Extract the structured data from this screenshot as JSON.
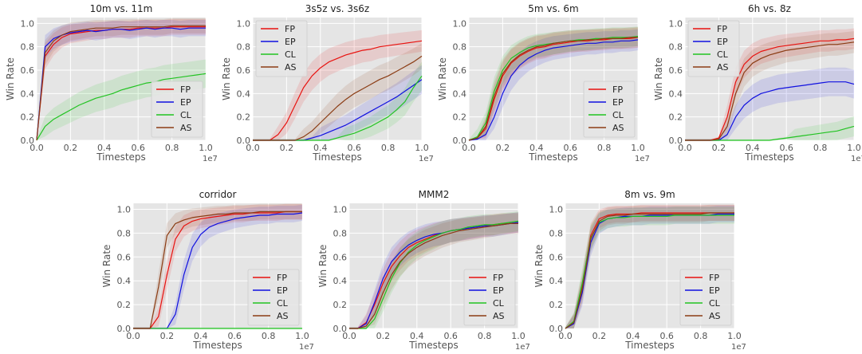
{
  "figure": {
    "colors": {
      "FP": "#e8120f",
      "EP": "#1010e0",
      "CL": "#22c322",
      "AS": "#8b3c14",
      "panel_bg": "#e5e5e5",
      "grid": "#ffffff",
      "text": "#555555"
    }
  },
  "chart_data": [
    {
      "type": "line",
      "title": "10m vs. 11m",
      "xlabel": "Timesteps",
      "ylabel": "Win Rate",
      "x_multiplier": "1e7",
      "xlim": [
        0,
        1.0
      ],
      "ylim": [
        0,
        1.05
      ],
      "xticks": [
        "0.0",
        "0.2",
        "0.4",
        "0.6",
        "0.8",
        "1.0"
      ],
      "yticks": [
        "0.0",
        "0.2",
        "0.4",
        "0.6",
        "0.8",
        "1.0"
      ],
      "legend_position": "lower-right",
      "grid": true,
      "x": [
        0.0,
        0.05,
        0.1,
        0.15,
        0.2,
        0.25,
        0.3,
        0.35,
        0.4,
        0.45,
        0.5,
        0.55,
        0.6,
        0.65,
        0.7,
        0.75,
        0.8,
        0.85,
        0.9,
        0.95,
        1.0
      ],
      "series": [
        {
          "name": "FP",
          "values": [
            0.0,
            0.72,
            0.82,
            0.88,
            0.91,
            0.92,
            0.93,
            0.94,
            0.94,
            0.95,
            0.95,
            0.95,
            0.96,
            0.96,
            0.96,
            0.96,
            0.97,
            0.97,
            0.97,
            0.97,
            0.97
          ]
        },
        {
          "name": "EP",
          "values": [
            0.0,
            0.8,
            0.87,
            0.9,
            0.92,
            0.93,
            0.94,
            0.93,
            0.94,
            0.95,
            0.95,
            0.94,
            0.95,
            0.96,
            0.95,
            0.96,
            0.96,
            0.95,
            0.96,
            0.96,
            0.96
          ]
        },
        {
          "name": "CL",
          "values": [
            0.0,
            0.12,
            0.18,
            0.22,
            0.26,
            0.3,
            0.33,
            0.36,
            0.38,
            0.4,
            0.43,
            0.45,
            0.47,
            0.49,
            0.5,
            0.52,
            0.53,
            0.54,
            0.55,
            0.56,
            0.57
          ]
        },
        {
          "name": "AS",
          "values": [
            0.0,
            0.75,
            0.85,
            0.9,
            0.93,
            0.94,
            0.95,
            0.96,
            0.96,
            0.96,
            0.97,
            0.97,
            0.97,
            0.97,
            0.97,
            0.97,
            0.98,
            0.98,
            0.98,
            0.98,
            0.98
          ]
        }
      ]
    },
    {
      "type": "line",
      "title": "3s5z vs. 3s6z",
      "xlabel": "Timesteps",
      "ylabel": "Win Rate",
      "x_multiplier": "1e7",
      "xlim": [
        0,
        1.0
      ],
      "ylim": [
        0,
        1.05
      ],
      "xticks": [
        "0.0",
        "0.2",
        "0.4",
        "0.6",
        "0.8",
        "1.0"
      ],
      "yticks": [
        "0.0",
        "0.2",
        "0.4",
        "0.6",
        "0.8",
        "1.0"
      ],
      "legend_position": "upper-left",
      "grid": true,
      "x": [
        0.0,
        0.05,
        0.1,
        0.15,
        0.2,
        0.25,
        0.3,
        0.35,
        0.4,
        0.45,
        0.5,
        0.55,
        0.6,
        0.65,
        0.7,
        0.75,
        0.8,
        0.85,
        0.9,
        0.95,
        1.0
      ],
      "series": [
        {
          "name": "FP",
          "values": [
            0.0,
            0.0,
            0.0,
            0.05,
            0.15,
            0.3,
            0.45,
            0.55,
            0.62,
            0.67,
            0.7,
            0.73,
            0.75,
            0.77,
            0.78,
            0.8,
            0.81,
            0.82,
            0.83,
            0.84,
            0.85
          ]
        },
        {
          "name": "EP",
          "values": [
            0.0,
            0.0,
            0.0,
            0.0,
            0.0,
            0.0,
            0.0,
            0.02,
            0.04,
            0.07,
            0.1,
            0.13,
            0.17,
            0.21,
            0.25,
            0.29,
            0.33,
            0.37,
            0.42,
            0.47,
            0.52
          ]
        },
        {
          "name": "CL",
          "values": [
            0.0,
            0.0,
            0.0,
            0.0,
            0.0,
            0.0,
            0.0,
            0.0,
            0.0,
            0.0,
            0.02,
            0.04,
            0.06,
            0.09,
            0.12,
            0.16,
            0.2,
            0.26,
            0.33,
            0.45,
            0.55
          ]
        },
        {
          "name": "AS",
          "values": [
            0.0,
            0.0,
            0.0,
            0.0,
            0.0,
            0.0,
            0.03,
            0.08,
            0.15,
            0.22,
            0.29,
            0.35,
            0.4,
            0.44,
            0.48,
            0.52,
            0.55,
            0.59,
            0.63,
            0.67,
            0.72
          ]
        }
      ]
    },
    {
      "type": "line",
      "title": "5m vs. 6m",
      "xlabel": "Timesteps",
      "ylabel": "Win Rate",
      "x_multiplier": "1e7",
      "xlim": [
        0,
        1.0
      ],
      "ylim": [
        0,
        1.05
      ],
      "xticks": [
        "0.0",
        "0.2",
        "0.4",
        "0.6",
        "0.8",
        "1.0"
      ],
      "yticks": [
        "0.0",
        "0.2",
        "0.4",
        "0.6",
        "0.8",
        "1.0"
      ],
      "legend_position": "lower-right",
      "grid": true,
      "x": [
        0.0,
        0.05,
        0.1,
        0.15,
        0.2,
        0.25,
        0.3,
        0.35,
        0.4,
        0.45,
        0.5,
        0.55,
        0.6,
        0.65,
        0.7,
        0.75,
        0.8,
        0.85,
        0.9,
        0.95,
        1.0
      ],
      "series": [
        {
          "name": "FP",
          "values": [
            0.0,
            0.02,
            0.1,
            0.35,
            0.55,
            0.66,
            0.72,
            0.76,
            0.79,
            0.8,
            0.82,
            0.83,
            0.84,
            0.85,
            0.85,
            0.86,
            0.86,
            0.87,
            0.87,
            0.87,
            0.88
          ]
        },
        {
          "name": "EP",
          "values": [
            0.0,
            0.01,
            0.05,
            0.2,
            0.4,
            0.55,
            0.64,
            0.7,
            0.74,
            0.77,
            0.79,
            0.8,
            0.81,
            0.82,
            0.83,
            0.83,
            0.84,
            0.84,
            0.85,
            0.85,
            0.86
          ]
        },
        {
          "name": "CL",
          "values": [
            0.0,
            0.03,
            0.15,
            0.42,
            0.6,
            0.7,
            0.75,
            0.79,
            0.81,
            0.82,
            0.83,
            0.84,
            0.85,
            0.86,
            0.86,
            0.87,
            0.87,
            0.88,
            0.88,
            0.88,
            0.89
          ]
        },
        {
          "name": "AS",
          "values": [
            0.0,
            0.02,
            0.12,
            0.38,
            0.57,
            0.67,
            0.73,
            0.77,
            0.8,
            0.81,
            0.83,
            0.84,
            0.85,
            0.85,
            0.86,
            0.86,
            0.87,
            0.87,
            0.87,
            0.88,
            0.88
          ]
        }
      ]
    },
    {
      "type": "line",
      "title": "6h vs. 8z",
      "xlabel": "Timesteps",
      "ylabel": "Win Rate",
      "x_multiplier": "1e7",
      "xlim": [
        0,
        1.0
      ],
      "ylim": [
        0,
        1.05
      ],
      "xticks": [
        "0.0",
        "0.2",
        "0.4",
        "0.6",
        "0.8",
        "1.0"
      ],
      "yticks": [
        "0.0",
        "0.2",
        "0.4",
        "0.6",
        "0.8",
        "1.0"
      ],
      "legend_position": "upper-left",
      "grid": true,
      "x": [
        0.0,
        0.05,
        0.1,
        0.15,
        0.2,
        0.25,
        0.3,
        0.35,
        0.4,
        0.45,
        0.5,
        0.55,
        0.6,
        0.65,
        0.7,
        0.75,
        0.8,
        0.85,
        0.9,
        0.95,
        1.0
      ],
      "series": [
        {
          "name": "FP",
          "values": [
            0.0,
            0.0,
            0.0,
            0.0,
            0.02,
            0.2,
            0.5,
            0.65,
            0.72,
            0.76,
            0.78,
            0.8,
            0.81,
            0.82,
            0.83,
            0.84,
            0.85,
            0.85,
            0.86,
            0.86,
            0.87
          ]
        },
        {
          "name": "EP",
          "values": [
            0.0,
            0.0,
            0.0,
            0.0,
            0.0,
            0.05,
            0.2,
            0.3,
            0.36,
            0.4,
            0.42,
            0.44,
            0.45,
            0.46,
            0.47,
            0.48,
            0.49,
            0.5,
            0.5,
            0.5,
            0.48
          ]
        },
        {
          "name": "CL",
          "values": [
            0.0,
            0.0,
            0.0,
            0.0,
            0.0,
            0.0,
            0.0,
            0.0,
            0.0,
            0.0,
            0.0,
            0.01,
            0.02,
            0.03,
            0.04,
            0.05,
            0.06,
            0.07,
            0.08,
            0.1,
            0.12
          ]
        },
        {
          "name": "AS",
          "values": [
            0.0,
            0.0,
            0.0,
            0.0,
            0.01,
            0.12,
            0.4,
            0.58,
            0.66,
            0.7,
            0.73,
            0.75,
            0.77,
            0.78,
            0.79,
            0.8,
            0.81,
            0.82,
            0.82,
            0.83,
            0.84
          ]
        }
      ]
    },
    {
      "type": "line",
      "title": "corridor",
      "xlabel": "Timesteps",
      "ylabel": "Win Rate",
      "x_multiplier": "1e7",
      "xlim": [
        0,
        1.0
      ],
      "ylim": [
        0,
        1.05
      ],
      "xticks": [
        "0.0",
        "0.2",
        "0.4",
        "0.6",
        "0.8",
        "1.0"
      ],
      "yticks": [
        "0.0",
        "0.2",
        "0.4",
        "0.6",
        "0.8",
        "1.0"
      ],
      "legend_position": "lower-right",
      "grid": true,
      "x": [
        0.0,
        0.05,
        0.1,
        0.15,
        0.2,
        0.25,
        0.3,
        0.35,
        0.4,
        0.45,
        0.5,
        0.55,
        0.6,
        0.65,
        0.7,
        0.75,
        0.8,
        0.85,
        0.9,
        0.95,
        1.0
      ],
      "series": [
        {
          "name": "FP",
          "values": [
            0.0,
            0.0,
            0.0,
            0.1,
            0.45,
            0.75,
            0.86,
            0.9,
            0.92,
            0.93,
            0.94,
            0.95,
            0.96,
            0.96,
            0.97,
            0.97,
            0.97,
            0.97,
            0.98,
            0.98,
            0.98
          ]
        },
        {
          "name": "EP",
          "values": [
            0.0,
            0.0,
            0.0,
            0.0,
            0.0,
            0.12,
            0.45,
            0.68,
            0.79,
            0.85,
            0.88,
            0.9,
            0.92,
            0.93,
            0.94,
            0.95,
            0.95,
            0.96,
            0.96,
            0.96,
            0.97
          ]
        },
        {
          "name": "CL",
          "values": [
            0.0,
            0.0,
            0.0,
            0.0,
            0.0,
            0.0,
            0.0,
            0.0,
            0.0,
            0.0,
            0.0,
            0.0,
            0.0,
            0.0,
            0.0,
            0.0,
            0.0,
            0.0,
            0.0,
            0.0,
            0.0
          ]
        },
        {
          "name": "AS",
          "values": [
            0.0,
            0.0,
            0.0,
            0.35,
            0.78,
            0.88,
            0.91,
            0.93,
            0.94,
            0.95,
            0.96,
            0.96,
            0.97,
            0.97,
            0.97,
            0.98,
            0.98,
            0.98,
            0.98,
            0.98,
            0.98
          ]
        }
      ]
    },
    {
      "type": "line",
      "title": "MMM2",
      "xlabel": "Timesteps",
      "ylabel": "Win Rate",
      "x_multiplier": "1e7",
      "xlim": [
        0,
        1.0
      ],
      "ylim": [
        0,
        1.05
      ],
      "xticks": [
        "0.0",
        "0.2",
        "0.4",
        "0.6",
        "0.8",
        "1.0"
      ],
      "yticks": [
        "0.0",
        "0.2",
        "0.4",
        "0.6",
        "0.8",
        "1.0"
      ],
      "legend_position": "lower-right",
      "grid": true,
      "x": [
        0.0,
        0.05,
        0.1,
        0.15,
        0.2,
        0.25,
        0.3,
        0.35,
        0.4,
        0.45,
        0.5,
        0.55,
        0.6,
        0.65,
        0.7,
        0.75,
        0.8,
        0.85,
        0.9,
        0.95,
        1.0
      ],
      "series": [
        {
          "name": "FP",
          "values": [
            0.0,
            0.0,
            0.05,
            0.2,
            0.38,
            0.52,
            0.61,
            0.68,
            0.72,
            0.75,
            0.78,
            0.8,
            0.82,
            0.83,
            0.84,
            0.85,
            0.86,
            0.87,
            0.88,
            0.88,
            0.89
          ]
        },
        {
          "name": "EP",
          "values": [
            0.0,
            0.0,
            0.04,
            0.22,
            0.42,
            0.56,
            0.64,
            0.7,
            0.74,
            0.77,
            0.79,
            0.8,
            0.82,
            0.83,
            0.84,
            0.85,
            0.86,
            0.86,
            0.87,
            0.88,
            0.89
          ]
        },
        {
          "name": "CL",
          "values": [
            0.0,
            0.0,
            0.0,
            0.08,
            0.25,
            0.42,
            0.55,
            0.64,
            0.7,
            0.74,
            0.77,
            0.8,
            0.82,
            0.83,
            0.85,
            0.86,
            0.87,
            0.87,
            0.88,
            0.89,
            0.9
          ]
        },
        {
          "name": "AS",
          "values": [
            0.0,
            0.0,
            0.02,
            0.12,
            0.3,
            0.45,
            0.56,
            0.63,
            0.68,
            0.72,
            0.75,
            0.78,
            0.8,
            0.82,
            0.83,
            0.84,
            0.85,
            0.86,
            0.87,
            0.88,
            0.88
          ]
        }
      ]
    },
    {
      "type": "line",
      "title": "8m vs. 9m",
      "xlabel": "Timesteps",
      "ylabel": "Win Rate",
      "x_multiplier": "1e7",
      "xlim": [
        0,
        1.0
      ],
      "ylim": [
        0,
        1.05
      ],
      "xticks": [
        "0.0",
        "0.2",
        "0.4",
        "0.6",
        "0.8",
        "1.0"
      ],
      "yticks": [
        "0.0",
        "0.2",
        "0.4",
        "0.6",
        "0.8",
        "1.0"
      ],
      "legend_position": "lower-right",
      "grid": true,
      "x": [
        0.0,
        0.05,
        0.1,
        0.15,
        0.2,
        0.25,
        0.3,
        0.35,
        0.4,
        0.45,
        0.5,
        0.55,
        0.6,
        0.65,
        0.7,
        0.75,
        0.8,
        0.85,
        0.9,
        0.95,
        1.0
      ],
      "series": [
        {
          "name": "FP",
          "values": [
            0.0,
            0.05,
            0.35,
            0.78,
            0.92,
            0.95,
            0.96,
            0.96,
            0.96,
            0.97,
            0.97,
            0.97,
            0.97,
            0.97,
            0.97,
            0.97,
            0.97,
            0.97,
            0.97,
            0.97,
            0.97
          ]
        },
        {
          "name": "EP",
          "values": [
            0.0,
            0.04,
            0.3,
            0.72,
            0.88,
            0.92,
            0.93,
            0.94,
            0.94,
            0.94,
            0.95,
            0.95,
            0.95,
            0.95,
            0.95,
            0.95,
            0.95,
            0.95,
            0.96,
            0.96,
            0.96
          ]
        },
        {
          "name": "CL",
          "values": [
            0.0,
            0.06,
            0.38,
            0.76,
            0.89,
            0.92,
            0.93,
            0.93,
            0.94,
            0.94,
            0.94,
            0.94,
            0.94,
            0.95,
            0.95,
            0.95,
            0.95,
            0.95,
            0.95,
            0.95,
            0.95
          ]
        },
        {
          "name": "AS",
          "values": [
            0.0,
            0.05,
            0.33,
            0.75,
            0.9,
            0.94,
            0.95,
            0.95,
            0.96,
            0.96,
            0.96,
            0.96,
            0.96,
            0.96,
            0.96,
            0.96,
            0.96,
            0.97,
            0.97,
            0.97,
            0.97
          ]
        }
      ]
    }
  ]
}
